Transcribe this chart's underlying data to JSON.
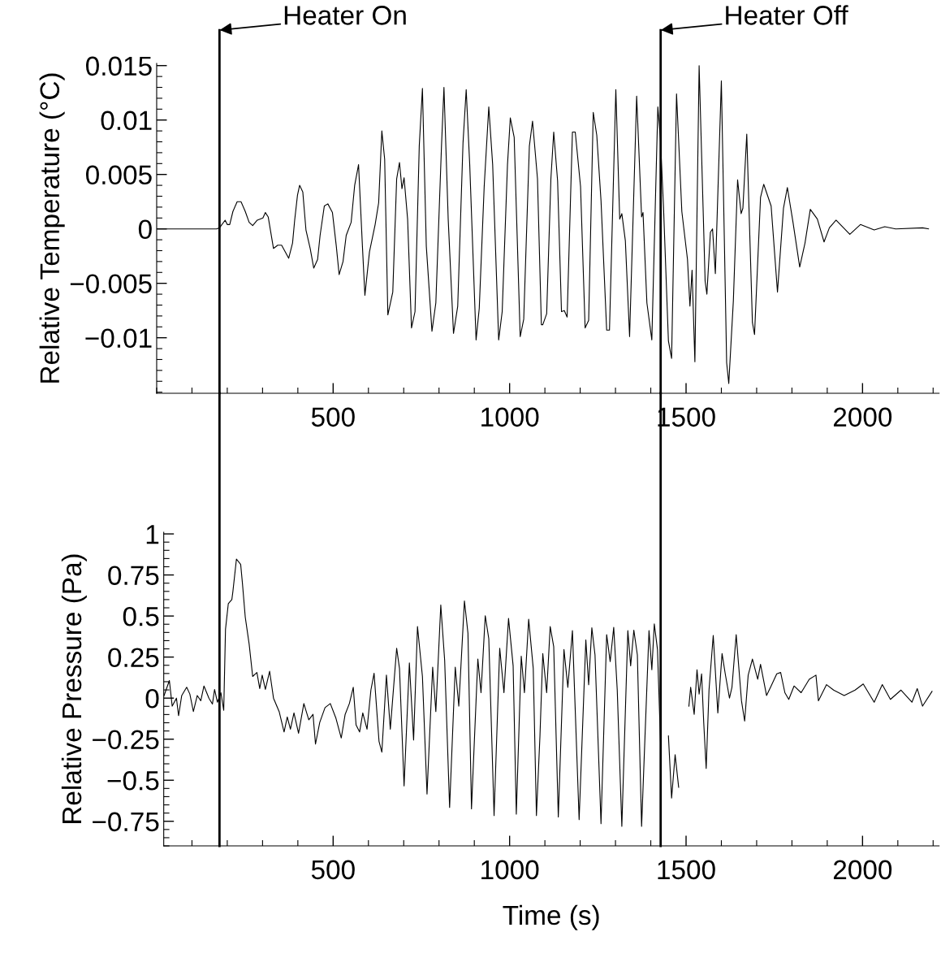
{
  "chart_data": [
    {
      "type": "line",
      "ylabel": "Relative Temperature (°C)",
      "xlim": [
        0,
        2217
      ],
      "ylim": [
        -0.0151,
        0.0152
      ],
      "xticks": [
        500,
        1000,
        1500,
        2000
      ],
      "yticks": [
        {
          "value": -0.01,
          "label": "−0.01"
        },
        {
          "value": -0.005,
          "label": "−0.005"
        },
        0,
        0.005,
        0.01,
        0.015
      ],
      "grid": false,
      "legend": false,
      "marker": "none",
      "line_style": "solid",
      "ref_lines": [
        {
          "axis": "x",
          "value": 178,
          "label": "Heater On",
          "color": "#000000"
        },
        {
          "axis": "x",
          "value": 1428,
          "label": "Heater Off",
          "color": "#000000"
        }
      ],
      "series": [
        {
          "color": "#000000",
          "x": [
            2,
            170,
            178,
            194,
            200,
            207,
            216,
            228,
            239,
            251,
            262,
            272,
            285,
            301,
            308,
            316,
            331,
            343,
            354,
            364,
            374,
            385,
            391,
            399,
            405,
            414,
            423,
            435,
            445,
            456,
            463,
            475,
            485,
            498,
            509,
            517,
            528,
            537,
            551,
            561,
            572,
            583,
            590,
            603,
            619,
            629,
            638,
            646,
            655,
            669,
            680,
            688,
            695,
            701,
            711,
            722,
            732,
            744,
            753,
            764,
            780,
            791,
            807,
            814,
            826,
            841,
            853,
            868,
            877,
            887,
            905,
            914,
            928,
            941,
            952,
            969,
            979,
            994,
            1002,
            1013,
            1030,
            1040,
            1056,
            1065,
            1079,
            1090,
            1094,
            1105,
            1117,
            1125,
            1136,
            1147,
            1155,
            1163,
            1178,
            1186,
            1201,
            1214,
            1224,
            1237,
            1247,
            1259,
            1275,
            1283,
            1301,
            1312,
            1318,
            1328,
            1340,
            1360,
            1374,
            1378,
            1389,
            1403,
            1420,
            1427,
            1436,
            1450,
            1459,
            1473,
            1488,
            1504,
            1511,
            1517,
            1525,
            1537,
            1554,
            1559,
            1569,
            1575,
            1583,
            1600,
            1615,
            1621,
            1634,
            1646,
            1656,
            1661,
            1672,
            1688,
            1694,
            1711,
            1720,
            1741,
            1759,
            1776,
            1787,
            1803,
            1822,
            1837,
            1852,
            1872,
            1891,
            1906,
            1925,
            1964,
            1994,
            2033,
            2063,
            2094,
            2170,
            2187
          ],
          "values": [
            0,
            0,
            0.0001,
            0.0008,
            0.0004,
            0.0004,
            0.0016,
            0.0025,
            0.0025,
            0.0016,
            0.0006,
            0.0003,
            0.0008,
            0.001,
            0.0015,
            0.0011,
            -0.0018,
            -0.0015,
            -0.0015,
            -0.0021,
            -0.0027,
            -0.0013,
            0.0008,
            0.0031,
            0.004,
            0.0034,
            -0.0001,
            -0.0018,
            -0.0036,
            -0.0028,
            -0.0006,
            0.0021,
            0.0023,
            0.0015,
            -0.0016,
            -0.0042,
            -0.003,
            -0.0006,
            0.0006,
            0.004,
            0.0059,
            -0.0016,
            -0.0061,
            -0.0021,
            0.0004,
            0.0024,
            0.009,
            0.0064,
            -0.0079,
            -0.0058,
            0.0046,
            0.0061,
            0.0037,
            0.0047,
            0.0009,
            -0.0091,
            -0.0076,
            0.0076,
            0.0129,
            -0.0016,
            -0.0094,
            -0.0068,
            0.0076,
            0.013,
            0.0009,
            -0.0096,
            -0.0071,
            0.0079,
            0.0128,
            0.0059,
            -0.0102,
            -0.0073,
            0.0039,
            0.0112,
            0.0059,
            -0.0102,
            -0.0076,
            0.0059,
            0.0102,
            0.0084,
            -0.0099,
            -0.0083,
            0.0076,
            0.0099,
            0.0046,
            -0.0088,
            -0.0088,
            -0.0078,
            0.0046,
            0.0089,
            0.0044,
            -0.0076,
            -0.0075,
            -0.0081,
            0.0089,
            0.0089,
            0.0039,
            -0.0091,
            -0.0084,
            0.0107,
            0.0086,
            0.0026,
            -0.0093,
            -0.0093,
            0.0128,
            0.0009,
            0.0014,
            -0.0011,
            -0.0099,
            0.0122,
            0.0011,
            0.0015,
            -0.0068,
            -0.0102,
            0.0112,
            0.0084,
            0.0021,
            -0.0103,
            -0.0119,
            0.0124,
            0.0016,
            -0.0028,
            -0.0071,
            -0.0038,
            -0.0122,
            0.015,
            -0.0048,
            -0.006,
            -0.0003,
            0,
            -0.0041,
            0.0136,
            -0.0123,
            -0.0142,
            -0.0066,
            0.0045,
            0.0014,
            0.0019,
            0.0087,
            -0.0086,
            -0.0097,
            0.0029,
            0.0041,
            0.0021,
            -0.0058,
            0.0019,
            0.0038,
            0.0006,
            -0.0035,
            -0.0013,
            0.0018,
            0.0009,
            -0.0012,
            0.0001,
            0.0008,
            -0.0005,
            0.0004,
            -0.0001,
            0.0002,
            0,
            0.0001,
            0
          ]
        }
      ]
    },
    {
      "type": "line",
      "xlabel": "Time (s)",
      "ylabel": "Relative Pressure (Pa)",
      "xlim": [
        20,
        2217
      ],
      "ylim": [
        -0.9,
        1.01
      ],
      "xticks": [
        500,
        1000,
        1500,
        2000
      ],
      "yticks": [
        {
          "value": -0.75,
          "label": "−0.75"
        },
        {
          "value": -0.5,
          "label": "−0.5"
        },
        {
          "value": -0.25,
          "label": "−0.25"
        },
        0,
        0.25,
        0.5,
        0.75,
        1
      ],
      "grid": false,
      "legend": false,
      "marker": "none",
      "line_style": "solid",
      "ref_lines": [
        {
          "axis": "x",
          "value": 178,
          "color": "#000000"
        },
        {
          "axis": "x",
          "value": 1428,
          "color": "#000000"
        }
      ],
      "series": [
        {
          "color": "#000000",
          "x": [
            21,
            36,
            44,
            56,
            62,
            71,
            85,
            94,
            104,
            115,
            125,
            134,
            148,
            158,
            164,
            172,
            182,
            190,
            195,
            203,
            213,
            216,
            226,
            238,
            243,
            251,
            262,
            272,
            284,
            292,
            299,
            308,
            320,
            331,
            347,
            361,
            370,
            379,
            389,
            402,
            417,
            431,
            443,
            450,
            462,
            477,
            492,
            508,
            523,
            534,
            546,
            557,
            565,
            575,
            584,
            596,
            607,
            616,
            630,
            638,
            651,
            662,
            680,
            688,
            701,
            716,
            728,
            739,
            753,
            766,
            782,
            791,
            805,
            816,
            830,
            846,
            856,
            872,
            882,
            892,
            910,
            919,
            931,
            941,
            956,
            972,
            984,
            997,
            1010,
            1019,
            1033,
            1042,
            1054,
            1067,
            1076,
            1086,
            1094,
            1105,
            1115,
            1125,
            1138,
            1154,
            1165,
            1178,
            1197,
            1216,
            1224,
            1233,
            1242,
            1259,
            1275,
            1285,
            1295,
            1305,
            1318,
            1335,
            1343,
            1352,
            1362,
            1374,
            1395,
            1403,
            1410,
            1419,
            1429,
            1439,
            1450,
            1459,
            1469,
            1479,
            1488,
            1496,
            1508,
            1513,
            1523,
            1531,
            1537,
            1544,
            1550,
            1557,
            1565,
            1577,
            1590,
            1602,
            1611,
            1623,
            1630,
            1642,
            1657,
            1666,
            1676,
            1688,
            1703,
            1711,
            1728,
            1741,
            1757,
            1768,
            1780,
            1791,
            1806,
            1826,
            1849,
            1868,
            1875,
            1898,
            1918,
            1948,
            1979,
            2002,
            2033,
            2056,
            2079,
            2109,
            2140,
            2155,
            2170,
            2197
          ],
          "values": [
            0.016,
            0.107,
            -0.049,
            0,
            -0.107,
            0.016,
            0.066,
            0.025,
            -0.082,
            0.016,
            -0.016,
            0.074,
            0,
            -0.036,
            0.053,
            -0.025,
            0.033,
            -0.074,
            0.419,
            0.576,
            0.6,
            0.65,
            0.847,
            0.814,
            0.699,
            0.493,
            0.329,
            0.132,
            0.156,
            0.058,
            0.14,
            0.053,
            0.164,
            0,
            -0.082,
            -0.206,
            -0.115,
            -0.189,
            -0.09,
            -0.214,
            -0.033,
            -0.132,
            -0.099,
            -0.28,
            -0.148,
            -0.058,
            -0.033,
            -0.123,
            -0.243,
            -0.099,
            -0.033,
            0.066,
            -0.164,
            -0.206,
            -0.09,
            -0.189,
            0.049,
            0.151,
            -0.263,
            -0.329,
            0.14,
            -0.189,
            0.304,
            0.181,
            -0.535,
            0.214,
            -0.255,
            0.436,
            0.132,
            -0.584,
            0.189,
            -0.082,
            0.567,
            0.23,
            -0.666,
            0.189,
            -0.049,
            0.592,
            0.395,
            -0.674,
            0.238,
            0.033,
            0.502,
            0.362,
            -0.715,
            0.304,
            0.033,
            0.485,
            0.197,
            -0.707,
            0.255,
            0.033,
            0.48,
            0.181,
            -0.715,
            -0.23,
            0.271,
            0.033,
            0.436,
            0.313,
            -0.724,
            0.296,
            0.066,
            0.411,
            -0.74,
            0.354,
            0.082,
            0.428,
            0.263,
            -0.765,
            0.387,
            0.222,
            0.431,
            0.049,
            -0.781,
            0.411,
            0.197,
            0.414,
            0.263,
            -0.781,
            0.411,
            0.173,
            0.452,
            0.296,
            -0.362,
            null,
            -0.23,
            -0.609,
            -0.345,
            -0.543,
            null,
            null,
            -0.049,
            0.066,
            -0.099,
            0.173,
            0.025,
            0.148,
            -0.148,
            -0.428,
            0.049,
            0.382,
            -0.09,
            0.271,
            0.148,
            0,
            0.066,
            0.387,
            -0.016,
            -0.14,
            0.14,
            0.238,
            0.115,
            0.206,
            0.016,
            0.074,
            0.148,
            0.156,
            0.033,
            -0.008,
            0.074,
            0.033,
            0.115,
            0.14,
            -0.016,
            0.082,
            0.049,
            0.016,
            0.049,
            0.086,
            -0.025,
            0.082,
            -0.008,
            0.049,
            -0.025,
            0.058,
            -0.049,
            0.041
          ]
        }
      ]
    }
  ]
}
